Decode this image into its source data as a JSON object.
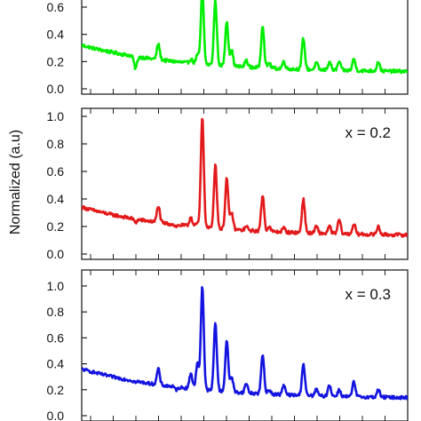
{
  "figure": {
    "ylabel": "Normalized (a.u)"
  },
  "chart_data": [
    {
      "type": "line",
      "panel": "top",
      "annotation": "",
      "color": "#00ee00",
      "ylim": [
        0.0,
        0.7
      ],
      "yticks": [
        "0.0",
        "0.2",
        "0.4",
        "0.6"
      ],
      "baseline": {
        "start": 0.32,
        "end": 0.12,
        "noise": 0.012
      },
      "peaks": [
        {
          "x": 0.165,
          "y": 0.15
        },
        {
          "x": 0.235,
          "y": 0.33
        },
        {
          "x": 0.29,
          "y": 0.2
        },
        {
          "x": 0.335,
          "y": 0.22
        },
        {
          "x": 0.355,
          "y": 0.25
        },
        {
          "x": 0.37,
          "y": 0.72
        },
        {
          "x": 0.41,
          "y": 0.65
        },
        {
          "x": 0.445,
          "y": 0.5
        },
        {
          "x": 0.46,
          "y": 0.28
        },
        {
          "x": 0.505,
          "y": 0.21
        },
        {
          "x": 0.555,
          "y": 0.47
        },
        {
          "x": 0.575,
          "y": 0.19
        },
        {
          "x": 0.62,
          "y": 0.2
        },
        {
          "x": 0.68,
          "y": 0.37
        },
        {
          "x": 0.72,
          "y": 0.19
        },
        {
          "x": 0.76,
          "y": 0.2
        },
        {
          "x": 0.79,
          "y": 0.2
        },
        {
          "x": 0.835,
          "y": 0.22
        },
        {
          "x": 0.91,
          "y": 0.2
        }
      ]
    },
    {
      "type": "line",
      "panel": "middle",
      "annotation": "x = 0.2",
      "color": "#e31a1c",
      "ylim": [
        0.0,
        1.15
      ],
      "yticks": [
        "0.0",
        "0.2",
        "0.4",
        "0.6",
        "0.8",
        "1.0"
      ],
      "baseline": {
        "start": 0.34,
        "end": 0.13,
        "noise": 0.012
      },
      "peaks": [
        {
          "x": 0.165,
          "y": 0.23
        },
        {
          "x": 0.235,
          "y": 0.35
        },
        {
          "x": 0.29,
          "y": 0.2
        },
        {
          "x": 0.335,
          "y": 0.27
        },
        {
          "x": 0.355,
          "y": 0.22
        },
        {
          "x": 0.37,
          "y": 1.0
        },
        {
          "x": 0.41,
          "y": 0.65
        },
        {
          "x": 0.445,
          "y": 0.55
        },
        {
          "x": 0.46,
          "y": 0.3
        },
        {
          "x": 0.505,
          "y": 0.2
        },
        {
          "x": 0.555,
          "y": 0.43
        },
        {
          "x": 0.575,
          "y": 0.2
        },
        {
          "x": 0.62,
          "y": 0.19
        },
        {
          "x": 0.68,
          "y": 0.4
        },
        {
          "x": 0.72,
          "y": 0.2
        },
        {
          "x": 0.76,
          "y": 0.2
        },
        {
          "x": 0.79,
          "y": 0.25
        },
        {
          "x": 0.835,
          "y": 0.22
        },
        {
          "x": 0.91,
          "y": 0.2
        }
      ]
    },
    {
      "type": "line",
      "panel": "bottom",
      "annotation": "x = 0.3",
      "color": "#1414e0",
      "ylim": [
        0.0,
        1.15
      ],
      "yticks": [
        "0.0",
        "0.2",
        "0.4",
        "0.6",
        "0.8",
        "1.0"
      ],
      "baseline": {
        "start": 0.36,
        "end": 0.13,
        "noise": 0.012
      },
      "peaks": [
        {
          "x": 0.165,
          "y": 0.26
        },
        {
          "x": 0.235,
          "y": 0.36
        },
        {
          "x": 0.29,
          "y": 0.2
        },
        {
          "x": 0.335,
          "y": 0.33
        },
        {
          "x": 0.355,
          "y": 0.4
        },
        {
          "x": 0.37,
          "y": 1.0
        },
        {
          "x": 0.41,
          "y": 0.72
        },
        {
          "x": 0.445,
          "y": 0.58
        },
        {
          "x": 0.46,
          "y": 0.3
        },
        {
          "x": 0.505,
          "y": 0.25
        },
        {
          "x": 0.555,
          "y": 0.47
        },
        {
          "x": 0.575,
          "y": 0.2
        },
        {
          "x": 0.62,
          "y": 0.23
        },
        {
          "x": 0.68,
          "y": 0.4
        },
        {
          "x": 0.72,
          "y": 0.2
        },
        {
          "x": 0.76,
          "y": 0.24
        },
        {
          "x": 0.79,
          "y": 0.2
        },
        {
          "x": 0.835,
          "y": 0.26
        },
        {
          "x": 0.91,
          "y": 0.2
        }
      ]
    }
  ]
}
